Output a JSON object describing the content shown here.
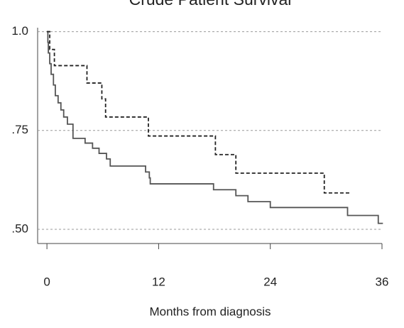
{
  "chart_data": {
    "type": "step",
    "title": "Crude Patient Survival",
    "x_label": "Months from diagnosis",
    "xlim": [
      -1,
      36
    ],
    "ylim": [
      0.464,
      1.01
    ],
    "xticks": [
      0,
      12,
      24,
      36
    ],
    "yticks": [
      {
        "value": 0.5,
        "label": ".50"
      },
      {
        "value": 0.75,
        "label": ".75"
      },
      {
        "value": 1.0,
        "label": "1.0"
      }
    ],
    "grid": true,
    "series": [
      {
        "color": "#555555",
        "line_style": "solid",
        "x": [
          0,
          0.1,
          0.15,
          0.3,
          0.45,
          0.7,
          0.9,
          1.2,
          1.5,
          1.8,
          2.2,
          2.8,
          4.1,
          4.9,
          5.6,
          6.4,
          6.8,
          10.6,
          11.0,
          11.1,
          17.9,
          20.3,
          21.6,
          24.0,
          32.3,
          35.6,
          36.1
        ],
        "values": [
          1.0,
          0.973,
          0.946,
          0.919,
          0.892,
          0.865,
          0.838,
          0.82,
          0.802,
          0.784,
          0.766,
          0.73,
          0.718,
          0.705,
          0.692,
          0.678,
          0.66,
          0.645,
          0.63,
          0.615,
          0.6,
          0.585,
          0.57,
          0.555,
          0.535,
          0.515,
          0.515
        ]
      },
      {
        "color": "#222222",
        "line_style": "dashed",
        "x": [
          0,
          0.3,
          0.8,
          4.3,
          5.9,
          6.3,
          10.9,
          18.1,
          20.3,
          29.8,
          32.7
        ],
        "values": [
          1.0,
          0.955,
          0.914,
          0.87,
          0.83,
          0.784,
          0.736,
          0.689,
          0.642,
          0.592,
          0.592
        ]
      }
    ]
  }
}
